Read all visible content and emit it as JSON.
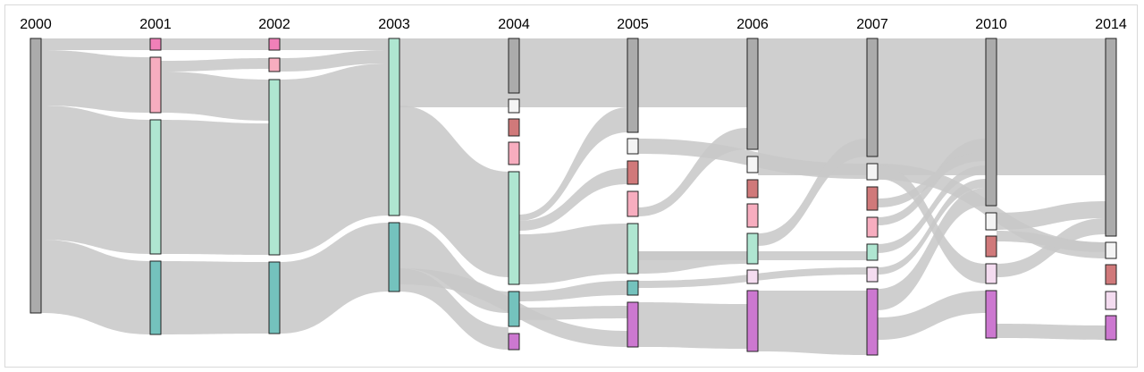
{
  "diagram": {
    "type": "sankey",
    "years": [
      "2000",
      "2001",
      "2002",
      "2003",
      "2004",
      "2005",
      "2006",
      "2007",
      "2010",
      "2014"
    ],
    "colors": {
      "gray": "#ababab",
      "white": "#f4f4f4",
      "red": "#d0797a",
      "pink": "#f7adbf",
      "hotpink": "#f080b8",
      "mint": "#afe6d1",
      "teal": "#74c2bd",
      "lavender": "#f4dcf0",
      "purple": "#cc78d0",
      "flow": "#c8c8c8"
    }
  }
}
